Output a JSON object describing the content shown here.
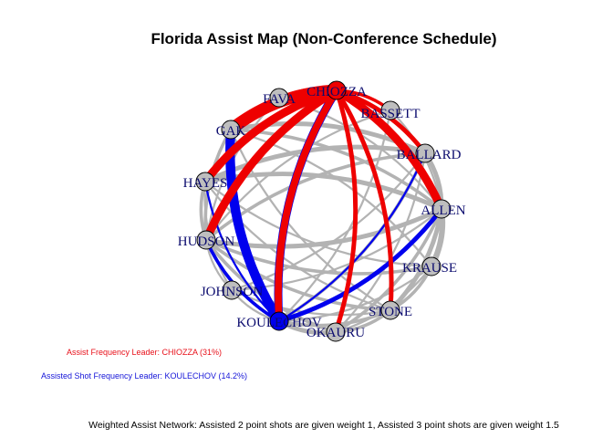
{
  "title": "Florida Assist Map (Non-Conference Schedule)",
  "legend": {
    "assist_leader": "Assist Frequency Leader: CHIOZZA (31%)",
    "assisted_leader": "Assisted Shot Frequency Leader: KOULECHOV (14.2%)"
  },
  "footnote": "Weighted Assist Network: Assisted 2 point shots are given weight 1, Assisted 3 point shots are given weight 1.5",
  "colors": {
    "assist_leader": "#ee0000",
    "assisted_leader": "#0000ee",
    "other": "#b3b3b3",
    "node_default": "#bebebe",
    "label": "#0b0b6e"
  },
  "nodes": [
    {
      "id": "CHIOZZA",
      "label": "CHIOZZA",
      "role": "assist_leader"
    },
    {
      "id": "BASSETT",
      "label": "BASSETT",
      "role": "other"
    },
    {
      "id": "BALLARD",
      "label": "BALLARD",
      "role": "other"
    },
    {
      "id": "ALLEN",
      "label": "ALLEN",
      "role": "other"
    },
    {
      "id": "KRAUSE",
      "label": "KRAUSE",
      "role": "other"
    },
    {
      "id": "STONE",
      "label": "STONE",
      "role": "other"
    },
    {
      "id": "OKAURU",
      "label": "OKAURU",
      "role": "other"
    },
    {
      "id": "KOULECHOV",
      "label": "KOULECHOV",
      "role": "assisted_leader"
    },
    {
      "id": "JOHNSON",
      "label": "JOHNSON",
      "role": "other"
    },
    {
      "id": "HUDSON",
      "label": "HUDSON",
      "role": "other"
    },
    {
      "id": "HAYES",
      "label": "HAYES",
      "role": "other"
    },
    {
      "id": "GAK",
      "label": "GAK",
      "role": "other"
    },
    {
      "id": "FAVA",
      "label": "FAVA",
      "role": "other"
    }
  ],
  "edges": [
    {
      "from": "CHIOZZA",
      "to": "GAK",
      "weight": 9,
      "kind": "assist_leader"
    },
    {
      "from": "CHIOZZA",
      "to": "HAYES",
      "weight": 6,
      "kind": "assist_leader"
    },
    {
      "from": "CHIOZZA",
      "to": "HUDSON",
      "weight": 6,
      "kind": "assist_leader"
    },
    {
      "from": "CHIOZZA",
      "to": "ALLEN",
      "weight": 6,
      "kind": "assist_leader"
    },
    {
      "from": "CHIOZZA",
      "to": "BALLARD",
      "weight": 3,
      "kind": "assist_leader"
    },
    {
      "from": "CHIOZZA",
      "to": "KOULECHOV",
      "weight": 5,
      "kind": "assist_leader"
    },
    {
      "from": "CHIOZZA",
      "to": "STONE",
      "weight": 3,
      "kind": "assist_leader"
    },
    {
      "from": "CHIOZZA",
      "to": "OKAURU",
      "weight": 3,
      "kind": "assist_leader"
    },
    {
      "from": "CHIOZZA",
      "to": "BASSETT",
      "weight": 2,
      "kind": "assist_leader"
    },
    {
      "from": "CHIOZZA",
      "to": "FAVA",
      "weight": 1,
      "kind": "assist_leader"
    },
    {
      "from": "KOULECHOV",
      "to": "CHIOZZA",
      "weight": 6,
      "kind": "assisted_leader"
    },
    {
      "from": "KOULECHOV",
      "to": "GAK",
      "weight": 7,
      "kind": "assisted_leader"
    },
    {
      "from": "KOULECHOV",
      "to": "ALLEN",
      "weight": 3,
      "kind": "assisted_leader"
    },
    {
      "from": "KOULECHOV",
      "to": "HUDSON",
      "weight": 2,
      "kind": "assisted_leader"
    },
    {
      "from": "KOULECHOV",
      "to": "BALLARD",
      "weight": 1,
      "kind": "assisted_leader"
    },
    {
      "from": "KOULECHOV",
      "to": "HAYES",
      "weight": 1,
      "kind": "assisted_leader"
    },
    {
      "from": "GAK",
      "to": "BALLARD",
      "weight": 3,
      "kind": "other"
    },
    {
      "from": "GAK",
      "to": "ALLEN",
      "weight": 2,
      "kind": "other"
    },
    {
      "from": "GAK",
      "to": "HUDSON",
      "weight": 2,
      "kind": "other"
    },
    {
      "from": "GAK",
      "to": "KRAUSE",
      "weight": 1,
      "kind": "other"
    },
    {
      "from": "GAK",
      "to": "STONE",
      "weight": 1,
      "kind": "other"
    },
    {
      "from": "FAVA",
      "to": "HUDSON",
      "weight": 1,
      "kind": "other"
    },
    {
      "from": "BASSETT",
      "to": "HUDSON",
      "weight": 1,
      "kind": "other"
    },
    {
      "from": "BASSETT",
      "to": "ALLEN",
      "weight": 1,
      "kind": "other"
    },
    {
      "from": "BASSETT",
      "to": "KOULECHOV",
      "weight": 1,
      "kind": "other"
    },
    {
      "from": "BALLARD",
      "to": "HAYES",
      "weight": 3,
      "kind": "other"
    },
    {
      "from": "BALLARD",
      "to": "ALLEN",
      "weight": 3,
      "kind": "other"
    },
    {
      "from": "BALLARD",
      "to": "KOULECHOV",
      "weight": 2,
      "kind": "other"
    },
    {
      "from": "BALLARD",
      "to": "HUDSON",
      "weight": 2,
      "kind": "other"
    },
    {
      "from": "BALLARD",
      "to": "JOHNSON",
      "weight": 1,
      "kind": "other"
    },
    {
      "from": "BALLARD",
      "to": "OKAURU",
      "weight": 1,
      "kind": "other"
    },
    {
      "from": "HAYES",
      "to": "ALLEN",
      "weight": 3,
      "kind": "other"
    },
    {
      "from": "HAYES",
      "to": "HUDSON",
      "weight": 2,
      "kind": "other"
    },
    {
      "from": "HAYES",
      "to": "KRAUSE",
      "weight": 1,
      "kind": "other"
    },
    {
      "from": "HAYES",
      "to": "STONE",
      "weight": 1,
      "kind": "other"
    },
    {
      "from": "HUDSON",
      "to": "ALLEN",
      "weight": 3,
      "kind": "other"
    },
    {
      "from": "HUDSON",
      "to": "KRAUSE",
      "weight": 2,
      "kind": "other"
    },
    {
      "from": "HUDSON",
      "to": "STONE",
      "weight": 2,
      "kind": "other"
    },
    {
      "from": "HUDSON",
      "to": "OKAURU",
      "weight": 2,
      "kind": "other"
    },
    {
      "from": "HUDSON",
      "to": "JOHNSON",
      "weight": 1,
      "kind": "other"
    },
    {
      "from": "HUDSON",
      "to": "KOULECHOV",
      "weight": 2,
      "kind": "other"
    },
    {
      "from": "ALLEN",
      "to": "KRAUSE",
      "weight": 4,
      "kind": "other"
    },
    {
      "from": "ALLEN",
      "to": "STONE",
      "weight": 3,
      "kind": "other"
    },
    {
      "from": "ALLEN",
      "to": "OKAURU",
      "weight": 2,
      "kind": "other"
    },
    {
      "from": "ALLEN",
      "to": "JOHNSON",
      "weight": 1,
      "kind": "other"
    },
    {
      "from": "KRAUSE",
      "to": "STONE",
      "weight": 2,
      "kind": "other"
    },
    {
      "from": "KRAUSE",
      "to": "OKAURU",
      "weight": 1,
      "kind": "other"
    },
    {
      "from": "KRAUSE",
      "to": "KOULECHOV",
      "weight": 1,
      "kind": "other"
    },
    {
      "from": "STONE",
      "to": "OKAURU",
      "weight": 2,
      "kind": "other"
    },
    {
      "from": "STONE",
      "to": "KOULECHOV",
      "weight": 2,
      "kind": "other"
    },
    {
      "from": "OKAURU",
      "to": "KOULECHOV",
      "weight": 3,
      "kind": "other"
    },
    {
      "from": "JOHNSON",
      "to": "KOULECHOV",
      "weight": 1,
      "kind": "other"
    },
    {
      "from": "JOHNSON",
      "to": "STONE",
      "weight": 1,
      "kind": "other"
    },
    {
      "from": "HAYES",
      "to": "JOHNSON",
      "weight": 1,
      "kind": "other"
    },
    {
      "from": "FAVA",
      "to": "ALLEN",
      "weight": 1,
      "kind": "other"
    }
  ]
}
